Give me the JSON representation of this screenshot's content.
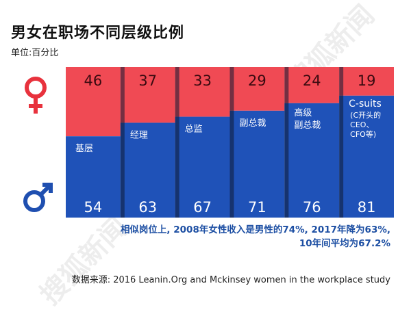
{
  "title": "男女在职场不同层级比例",
  "unit": "单位:百分比",
  "note_line1": "相似岗位上, 2008年女性收入是男性的74%, 2017年降为63%,",
  "note_line2": "10年间平均为67.2%",
  "source": "数据来源: 2016 Leanin.Org and Mckinsey women in the workplace study",
  "watermark": "搜狐新闻",
  "colors": {
    "female": "#f04a54",
    "male": "#1f52b8",
    "divider": "#0f1a33",
    "icon_female": "#e8323d",
    "icon_male": "#1f4fb0"
  },
  "icons": {
    "female": "female-symbol-icon",
    "male": "male-symbol-icon"
  },
  "chart_data": {
    "type": "bar",
    "stacked": true,
    "categories": [
      "基层",
      "经理",
      "总监",
      "副总裁",
      "高级副总裁",
      "C-suits"
    ],
    "category_sublabels": [
      "",
      "",
      "",
      "",
      "",
      "(C开头的CEO、CFO等)"
    ],
    "series": [
      {
        "key": "female",
        "values": [
          46,
          37,
          33,
          29,
          24,
          19
        ]
      },
      {
        "key": "male",
        "values": [
          54,
          63,
          67,
          71,
          76,
          81
        ]
      }
    ],
    "ylim": [
      0,
      100
    ]
  }
}
